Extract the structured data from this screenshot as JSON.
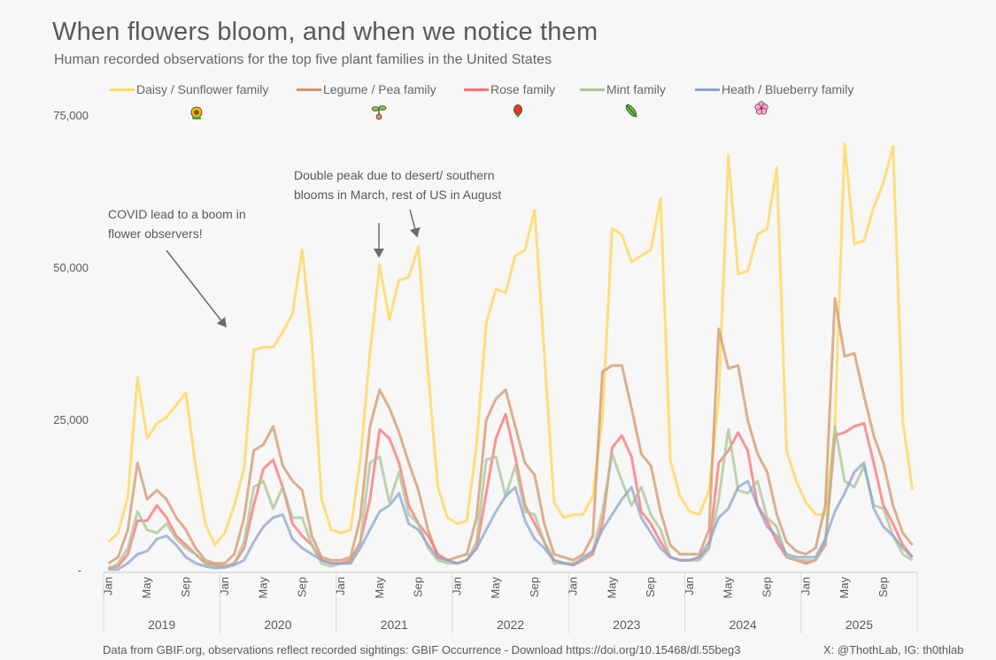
{
  "title": "When flowers bloom, and when we notice them",
  "subtitle": "Human recorded observations for the top five plant families in the United States",
  "annotations": [
    {
      "text_lines": [
        "COVID lead to a boom in",
        "flower observers!"
      ]
    },
    {
      "text_lines": [
        "Double peak due to desert/ southern",
        "blooms in March, rest of US in August"
      ]
    }
  ],
  "footer": {
    "source": "Data from GBIF.org, observations reflect recorded sightings: GBIF Occurrence - Download https://doi.org/10.15468/dl.55beg3",
    "credit": "X: @ThothLab, IG: th0thlab"
  },
  "chart_data": {
    "type": "line",
    "title": "When flowers bloom, and when we notice them",
    "xlabel": "",
    "ylabel": "",
    "ylim": [
      0,
      75000
    ],
    "y_ticks": [
      0,
      25000,
      50000,
      75000
    ],
    "y_tick_labels": [
      "-",
      "25,000",
      "50,000",
      "75,000"
    ],
    "grid": false,
    "legend_position": "top",
    "years": [
      "2019",
      "2020",
      "2021",
      "2022",
      "2023",
      "2024",
      "2025"
    ],
    "month_tick_labels": [
      "Jan",
      "May",
      "Sep"
    ],
    "x": "monthly, Jan 2019 - Dec 2025",
    "series": [
      {
        "name": "Daisy / Sunflower family",
        "color": "#FFD966",
        "icon": "sunflower-icon",
        "values": [
          5000,
          6500,
          12500,
          32000,
          22000,
          24500,
          25500,
          27500,
          29500,
          17500,
          8000,
          4500,
          6500,
          11000,
          17000,
          36500,
          37000,
          37000,
          39500,
          42500,
          53000,
          38000,
          12000,
          7000,
          6500,
          7000,
          18500,
          36000,
          50500,
          41500,
          48000,
          48500,
          53500,
          33000,
          14000,
          9000,
          8000,
          8500,
          21000,
          41000,
          46500,
          46000,
          52000,
          53000,
          59500,
          36000,
          11500,
          9000,
          9500,
          9500,
          12500,
          25500,
          56500,
          55500,
          51000,
          52000,
          53000,
          61500,
          18500,
          12500,
          10000,
          9500,
          13500,
          28500,
          68500,
          49000,
          49500,
          55500,
          56500,
          66500,
          20000,
          15000,
          11500,
          9500,
          9500,
          24000,
          70500,
          54000,
          54500,
          60000,
          64000,
          70000,
          25000,
          13500
        ]
      },
      {
        "name": "Legume / Pea family",
        "color": "#D4956A",
        "icon": "sprout-icon",
        "values": [
          1500,
          2500,
          7000,
          18000,
          12000,
          13500,
          12000,
          9000,
          7000,
          4000,
          2000,
          1500,
          1500,
          3000,
          9000,
          20000,
          21000,
          24000,
          17500,
          15000,
          13500,
          6000,
          2500,
          2000,
          2000,
          2500,
          9000,
          24000,
          30000,
          27000,
          23000,
          18000,
          13500,
          7000,
          2500,
          2000,
          2500,
          3000,
          9000,
          25000,
          28500,
          30000,
          24000,
          18000,
          16000,
          8000,
          3000,
          2500,
          2000,
          3000,
          6000,
          33000,
          34000,
          34000,
          27000,
          19500,
          17500,
          10000,
          4500,
          3000,
          3000,
          3000,
          7000,
          40000,
          33500,
          34000,
          25000,
          19500,
          16500,
          9500,
          5000,
          3500,
          3000,
          4000,
          11000,
          45000,
          35500,
          36000,
          29000,
          22500,
          18000,
          11000,
          6500,
          4500
        ]
      },
      {
        "name": "Rose family",
        "color": "#FF7070",
        "icon": "rose-icon",
        "values": [
          800,
          1000,
          3000,
          8500,
          8500,
          11000,
          9000,
          6000,
          4500,
          3000,
          1500,
          1200,
          1000,
          1500,
          4000,
          11000,
          17000,
          18500,
          14000,
          8000,
          6000,
          4500,
          2000,
          1500,
          1500,
          2000,
          5000,
          12000,
          23500,
          22000,
          18000,
          11000,
          8000,
          6000,
          3000,
          2000,
          1500,
          2000,
          4000,
          13000,
          22000,
          26000,
          19000,
          11000,
          8000,
          5000,
          2000,
          1500,
          1200,
          2000,
          3000,
          8000,
          20500,
          22500,
          19000,
          10000,
          8000,
          5000,
          2500,
          2000,
          2000,
          2500,
          4000,
          18000,
          20000,
          23000,
          20000,
          11000,
          8500,
          5000,
          2500,
          2000,
          1500,
          2000,
          4500,
          22500,
          23000,
          24000,
          24500,
          18000,
          11000,
          8000,
          4500,
          2500
        ]
      },
      {
        "name": "Mint family",
        "color": "#A9C49A",
        "icon": "herb-icon",
        "values": [
          500,
          1500,
          4000,
          10000,
          7000,
          6500,
          8000,
          5500,
          4000,
          3000,
          1500,
          1000,
          1000,
          1500,
          5000,
          14000,
          15000,
          10500,
          14000,
          9000,
          9000,
          4500,
          1500,
          1000,
          1500,
          1500,
          5000,
          18000,
          19000,
          11500,
          16500,
          9500,
          8000,
          4000,
          2000,
          1500,
          1500,
          2000,
          5000,
          18500,
          19000,
          12500,
          17500,
          10000,
          9500,
          5000,
          1500,
          1500,
          1500,
          2000,
          3500,
          10000,
          19500,
          15000,
          11000,
          14000,
          9500,
          7000,
          2500,
          2000,
          2000,
          2000,
          4000,
          12000,
          23500,
          13500,
          13000,
          15000,
          9000,
          7500,
          2500,
          2000,
          2000,
          2000,
          5000,
          24000,
          15000,
          14000,
          17500,
          11000,
          10500,
          6000,
          3000,
          2000
        ]
      },
      {
        "name": "Heath / Blueberry family",
        "color": "#8EA5CB",
        "icon": "blossom-icon",
        "values": [
          500,
          500,
          1500,
          3000,
          3500,
          5500,
          6000,
          4500,
          2500,
          1500,
          1000,
          700,
          800,
          1200,
          2000,
          5000,
          7500,
          9000,
          9500,
          5500,
          4000,
          3000,
          2000,
          1500,
          1500,
          1500,
          4000,
          7000,
          10000,
          11000,
          13000,
          8000,
          7000,
          4500,
          2500,
          2000,
          1500,
          2000,
          4000,
          7000,
          10000,
          12500,
          14000,
          8500,
          5500,
          4000,
          2000,
          1500,
          1200,
          2500,
          3500,
          7000,
          9500,
          12000,
          14000,
          9000,
          6500,
          4000,
          2500,
          2000,
          2000,
          2500,
          5000,
          9000,
          10500,
          14000,
          15000,
          11000,
          7500,
          6000,
          3000,
          2500,
          2500,
          2500,
          5500,
          10000,
          13000,
          16500,
          18000,
          10500,
          7500,
          6000,
          4000,
          2500
        ]
      }
    ]
  }
}
